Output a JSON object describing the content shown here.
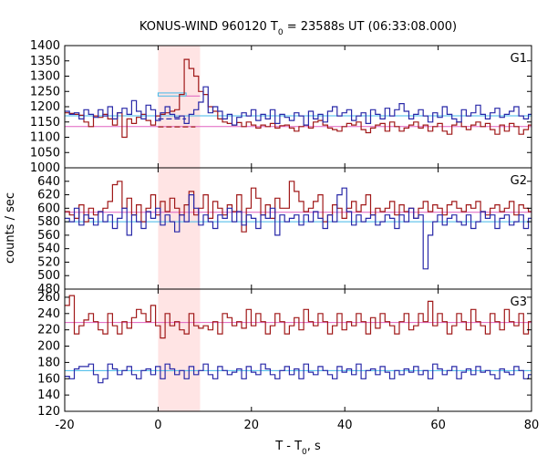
{
  "chart_data": {
    "type": "line",
    "title": "KONUS-WIND 960120 T",
    "title_sub": "0",
    "title_rest": " = 23588s UT (06:33:08.000)",
    "xlabel": "T - T",
    "xlabel_sub": "0",
    "xlabel_rest": ", s",
    "ylabel": "counts / sec",
    "xlim": [
      -20,
      80
    ],
    "xticks": [
      "-20",
      "0",
      "20",
      "40",
      "60",
      "80"
    ],
    "highlight_interval": [
      0,
      9
    ],
    "highlight_color": "#ffe4e4",
    "bin_width": 1.024,
    "panels": [
      {
        "name": "G1",
        "ylim": [
          1000,
          1400
        ],
        "yticks": [
          "1000",
          "1050",
          "1100",
          "1150",
          "1200",
          "1250",
          "1300",
          "1350",
          "1400"
        ],
        "background": {
          "red": 1135,
          "blue": 1170,
          "blue_inner": 1185
        },
        "extra_marks": {
          "red_dash": 1134,
          "blue_dash": 1160,
          "box_top": 1245,
          "box_inner": 1235
        },
        "series": [
          {
            "color": "#a01818",
            "values": [
              1180,
              1178,
              1175,
              1172,
              1150,
              1135,
              1170,
              1165,
              1175,
              1160,
              1140,
              1180,
              1100,
              1160,
              1145,
              1165,
              1175,
              1155,
              1140,
              1170,
              1175,
              1180,
              1185,
              1190,
              1240,
              1355,
              1325,
              1300,
              1250,
              1240,
              1200,
              1185,
              1160,
              1150,
              1145,
              1140,
              1148,
              1135,
              1150,
              1140,
              1130,
              1140,
              1135,
              1145,
              1130,
              1138,
              1140,
              1130,
              1120,
              1135,
              1140,
              1130,
              1150,
              1155,
              1140,
              1130,
              1125,
              1120,
              1135,
              1145,
              1140,
              1150,
              1125,
              1115,
              1130,
              1140,
              1145,
              1120,
              1150,
              1135,
              1120,
              1130,
              1140,
              1150,
              1130,
              1140,
              1120,
              1135,
              1145,
              1120,
              1110,
              1140,
              1150,
              1135,
              1125,
              1140,
              1150,
              1135,
              1145,
              1125,
              1110,
              1140,
              1120,
              1145,
              1135,
              1110,
              1125,
              1140,
              1120
            ]
          },
          {
            "color": "#2828a8",
            "values": [
              1185,
              1175,
              1180,
              1160,
              1190,
              1175,
              1165,
              1190,
              1170,
              1200,
              1160,
              1180,
              1195,
              1175,
              1220,
              1185,
              1160,
              1205,
              1190,
              1155,
              1180,
              1200,
              1175,
              1165,
              1170,
              1145,
              1175,
              1190,
              1215,
              1265,
              1180,
              1200,
              1185,
              1160,
              1175,
              1140,
              1165,
              1180,
              1170,
              1190,
              1155,
              1175,
              1160,
              1190,
              1145,
              1175,
              1165,
              1155,
              1180,
              1170,
              1140,
              1185,
              1160,
              1175,
              1150,
              1185,
              1200,
              1170,
              1180,
              1190,
              1155,
              1170,
              1180,
              1145,
              1190,
              1175,
              1160,
              1195,
              1170,
              1190,
              1210,
              1185,
              1160,
              1175,
              1190,
              1170,
              1150,
              1180,
              1165,
              1200,
              1175,
              1160,
              1150,
              1190,
              1170,
              1180,
              1205,
              1175,
              1160,
              1180,
              1195,
              1165,
              1175,
              1185,
              1200,
              1170,
              1160,
              1175,
              1180,
              1190
            ]
          }
        ]
      },
      {
        "name": "G2",
        "ylim": [
          480,
          660
        ],
        "yticks": [
          "480",
          "500",
          "520",
          "540",
          "560",
          "580",
          "600",
          "620",
          "640"
        ],
        "background": {
          "red": 594,
          "blue": 580
        },
        "series": [
          {
            "color": "#a01818",
            "values": [
              595,
              590,
              585,
              605,
              580,
              600,
              590,
              595,
              600,
              610,
              635,
              640,
              600,
              615,
              590,
              605,
              580,
              600,
              620,
              590,
              610,
              595,
              615,
              600,
              590,
              605,
              625,
              590,
              600,
              620,
              585,
              610,
              600,
              590,
              605,
              595,
              620,
              565,
              600,
              630,
              615,
              590,
              605,
              585,
              615,
              600,
              600,
              640,
              625,
              610,
              595,
              600,
              610,
              620,
              580,
              590,
              605,
              600,
              585,
              600,
              610,
              595,
              605,
              620,
              590,
              600,
              595,
              600,
              610,
              590,
              605,
              595,
              600,
              585,
              600,
              610,
              595,
              605,
              600,
              590,
              605,
              610,
              600,
              595,
              605,
              600,
              610,
              595,
              590,
              600,
              605,
              595,
              600,
              610,
              590,
              605,
              600,
              595
            ]
          },
          {
            "color": "#2828a8",
            "values": [
              585,
              580,
              600,
              575,
              590,
              585,
              575,
              595,
              580,
              590,
              570,
              585,
              600,
              560,
              590,
              580,
              570,
              595,
              585,
              600,
              575,
              590,
              580,
              565,
              590,
              580,
              620,
              600,
              575,
              590,
              580,
              570,
              590,
              585,
              600,
              580,
              595,
              575,
              590,
              585,
              570,
              590,
              585,
              600,
              560,
              590,
              580,
              585,
              590,
              575,
              590,
              580,
              595,
              585,
              570,
              590,
              580,
              620,
              630,
              595,
              575,
              590,
              580,
              585,
              590,
              575,
              580,
              590,
              585,
              570,
              590,
              580,
              600,
              585,
              590,
              510,
              560,
              580,
              590,
              575,
              585,
              590,
              580,
              575,
              590,
              570,
              580,
              595,
              585,
              590,
              570,
              585,
              590,
              575,
              580,
              590,
              570,
              585,
              580
            ]
          }
        ]
      },
      {
        "name": "G3",
        "ylim": [
          120,
          270
        ],
        "yticks": [
          "120",
          "140",
          "160",
          "180",
          "200",
          "220",
          "240",
          "260"
        ],
        "background": {
          "red": 229,
          "blue": 170
        },
        "series": [
          {
            "color": "#a01818",
            "values": [
              250,
              262,
              215,
              225,
              232,
              240,
              230,
              220,
              215,
              240,
              225,
              215,
              230,
              222,
              235,
              245,
              240,
              230,
              250,
              225,
              210,
              240,
              225,
              230,
              220,
              215,
              240,
              225,
              222,
              225,
              220,
              230,
              215,
              240,
              235,
              225,
              230,
              222,
              245,
              225,
              240,
              230,
              215,
              225,
              240,
              230,
              215,
              225,
              235,
              220,
              245,
              230,
              225,
              240,
              230,
              215,
              225,
              240,
              220,
              230,
              225,
              240,
              230,
              215,
              235,
              222,
              240,
              230,
              225,
              215,
              230,
              240,
              220,
              225,
              240,
              230,
              255,
              225,
              240,
              230,
              215,
              225,
              240,
              230,
              220,
              245,
              230,
              225,
              215,
              240,
              230,
              220,
              245,
              230,
              225,
              240,
              215,
              230,
              225,
              240
            ]
          },
          {
            "color": "#2828a8",
            "values": [
              163,
              160,
              172,
              175,
              175,
              178,
              165,
              155,
              160,
              178,
              172,
              165,
              170,
              175,
              165,
              160,
              170,
              172,
              165,
              175,
              160,
              178,
              172,
              165,
              170,
              160,
              175,
              165,
              170,
              178,
              165,
              160,
              175,
              170,
              165,
              168,
              172,
              160,
              175,
              168,
              165,
              178,
              172,
              165,
              160,
              170,
              175,
              165,
              172,
              160,
              178,
              168,
              165,
              175,
              170,
              165,
              160,
              175,
              168,
              172,
              165,
              178,
              160,
              170,
              172,
              165,
              175,
              168,
              160,
              170,
              165,
              172,
              168,
              175,
              165,
              170,
              160,
              178,
              172,
              165,
              170,
              175,
              160,
              168,
              172,
              165,
              175,
              168,
              170,
              165,
              160,
              172,
              168,
              165,
              175,
              170,
              160,
              165,
              172,
              165
            ]
          }
        ]
      }
    ]
  }
}
